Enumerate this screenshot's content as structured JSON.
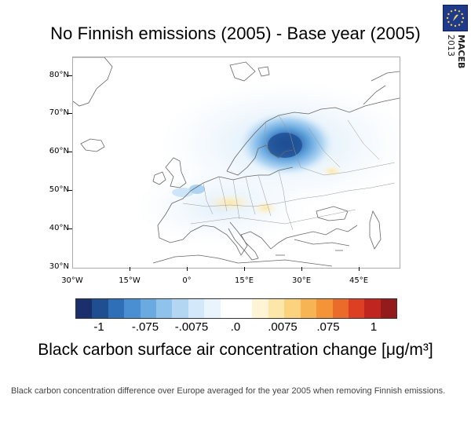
{
  "title": "No Finnish emissions (2005) - Base year (2005)",
  "logo": {
    "name": "MACEB",
    "year": "2013",
    "accent": "#1f3a8a"
  },
  "map": {
    "lat_labels": [
      "80°N",
      "70°N",
      "60°N",
      "50°N",
      "40°N",
      "30°N"
    ],
    "lon_labels": [
      "30°W",
      "15°W",
      "0°",
      "15°E",
      "30°E",
      "45°E"
    ],
    "lat_range": [
      30,
      84
    ],
    "lon_range": [
      -30,
      56
    ]
  },
  "colorbar": {
    "colors": [
      "#1a2f6b",
      "#1f4e91",
      "#2f6fb8",
      "#4a8fd1",
      "#6aaae0",
      "#8fc3ec",
      "#b3d7f3",
      "#d3e8f8",
      "#eaf4fc",
      "#ffffff",
      "#ffffff",
      "#fff4d6",
      "#fde7a8",
      "#fbd27e",
      "#f7b455",
      "#f29437",
      "#ea6b2a",
      "#dc3f24",
      "#c0261f",
      "#931b1b"
    ],
    "labels": [
      "-1",
      "-.075",
      "-.0075",
      ".0",
      ".0075",
      ".075",
      "1"
    ]
  },
  "caption_big": "Black carbon surface air concentration change [μg/m³]",
  "caption_small": "Black carbon concentration difference over Europe averaged for the year 2005 when removing Finnish emissions."
}
